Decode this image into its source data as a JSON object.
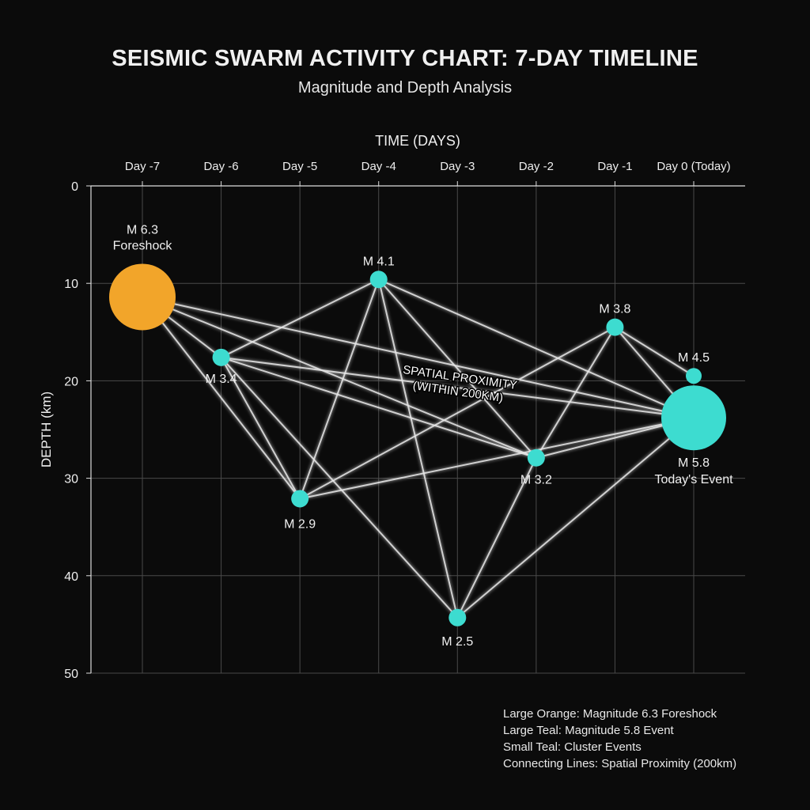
{
  "chart_data": {
    "type": "scatter",
    "title": "SEISMIC SWARM ACTIVITY CHART: 7-DAY TIMELINE",
    "subtitle": "Magnitude and Depth Analysis",
    "xlabel": "TIME (DAYS)",
    "ylabel": "DEPTH (km)",
    "x_ticks": [
      "Day -7",
      "Day -6",
      "Day -5",
      "Day -4",
      "Day -3",
      "Day -2",
      "Day -1",
      "Day 0 (Today)"
    ],
    "x_range": [
      -7,
      0
    ],
    "y_ticks": [
      0,
      10,
      20,
      30,
      40,
      50
    ],
    "ylim": [
      0,
      50
    ],
    "y_inverted": true,
    "grid": true,
    "x_axis_position": "top",
    "points": [
      {
        "day": -7,
        "depth": 11.4,
        "magnitude": 6.3,
        "label": "M 6.3",
        "sublabel": "Foreshock",
        "color": "#f2a52a"
      },
      {
        "day": -6,
        "depth": 17.6,
        "magnitude": 3.4,
        "label": "M 3.4",
        "color": "#3ddcd0"
      },
      {
        "day": -5,
        "depth": 32.1,
        "magnitude": 2.9,
        "label": "M 2.9",
        "color": "#3ddcd0"
      },
      {
        "day": -4,
        "depth": 9.6,
        "magnitude": 4.1,
        "label": "M 4.1",
        "color": "#3ddcd0"
      },
      {
        "day": -3,
        "depth": 44.3,
        "magnitude": 2.5,
        "label": "M 2.5",
        "color": "#3ddcd0"
      },
      {
        "day": -2,
        "depth": 27.9,
        "magnitude": 3.2,
        "label": "M 3.2",
        "color": "#3ddcd0"
      },
      {
        "day": -1,
        "depth": 14.5,
        "magnitude": 3.8,
        "label": "M 3.8",
        "color": "#3ddcd0"
      },
      {
        "day": 0,
        "depth": 19.5,
        "magnitude": 4.5,
        "label": "M 4.5",
        "color": "#3ddcd0"
      },
      {
        "day": 0,
        "depth": 23.8,
        "magnitude": 5.8,
        "label": "M 5.8",
        "sublabel": "Today's Event",
        "color": "#3ddcd0"
      }
    ],
    "connections": [
      [
        0,
        1
      ],
      [
        0,
        2
      ],
      [
        0,
        5
      ],
      [
        0,
        8
      ],
      [
        1,
        2
      ],
      [
        1,
        3
      ],
      [
        1,
        4
      ],
      [
        1,
        8
      ],
      [
        1,
        5
      ],
      [
        2,
        3
      ],
      [
        2,
        6
      ],
      [
        2,
        8
      ],
      [
        3,
        4
      ],
      [
        3,
        5
      ],
      [
        3,
        8
      ],
      [
        4,
        5
      ],
      [
        4,
        8
      ],
      [
        5,
        6
      ],
      [
        5,
        8
      ],
      [
        6,
        8
      ],
      [
        6,
        7
      ]
    ],
    "annotation": [
      "SPATIAL PROXIMITY",
      "(WITHIN 200KM)"
    ],
    "legend": [
      "Large Orange: Magnitude 6.3 Foreshock",
      "Large Teal: Magnitude 5.8 Event",
      "Small Teal: Cluster Events",
      "Connecting Lines: Spatial Proximity (200km)"
    ],
    "legend_position": "bottom-right"
  }
}
